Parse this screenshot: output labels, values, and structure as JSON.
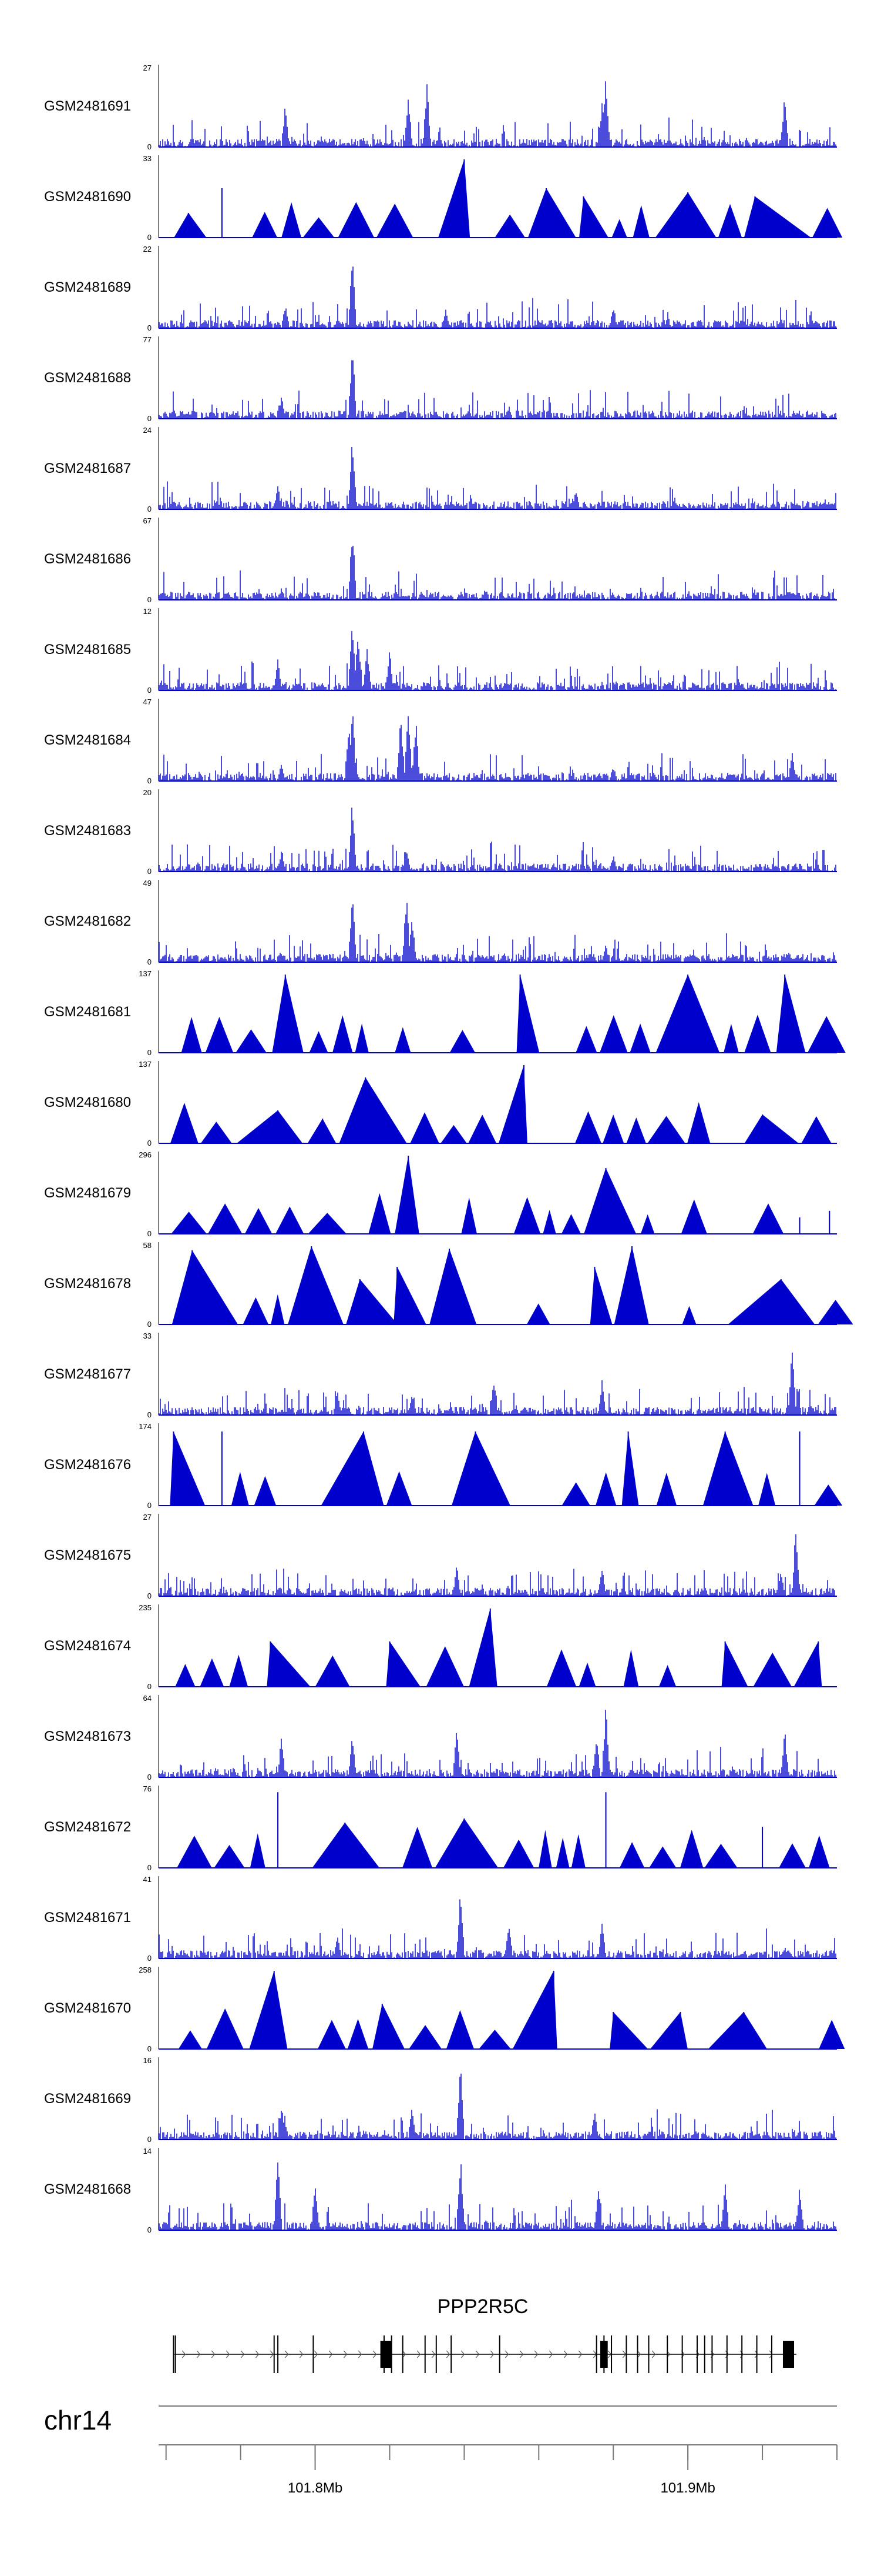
{
  "chart_data": {
    "type": "area",
    "title": "",
    "xlabel": "",
    "ylabel": "",
    "chromosome": "chr14",
    "gene_name": "PPP2R5C",
    "x_range_mb": [
      101.758,
      101.94
    ],
    "x_ticks_mb": [
      101.76,
      101.78,
      101.8,
      101.82,
      101.84,
      101.86,
      101.88,
      101.9,
      101.92,
      101.94
    ],
    "x_tick_labels": [
      {
        "position_mb": 101.8,
        "label": "101.8Mb"
      },
      {
        "position_mb": 101.9,
        "label": "101.9Mb"
      }
    ],
    "series_color": "#0000cc",
    "tracks": [
      {
        "name": "GSM2481691",
        "ymin": 0,
        "ymax": 27,
        "style": "dense",
        "peaks": [
          [
            101.792,
            0.55
          ],
          [
            101.825,
            0.7
          ],
          [
            101.83,
            0.8
          ],
          [
            101.878,
            0.92
          ],
          [
            101.877,
            0.6
          ],
          [
            101.926,
            0.72
          ]
        ]
      },
      {
        "name": "GSM2481690",
        "ymin": 0,
        "ymax": 33,
        "style": "sparse",
        "peaks": [
          [
            101.766,
            0.3
          ],
          [
            101.775,
            0.6
          ],
          [
            101.84,
            0.95
          ],
          [
            101.862,
            0.6
          ],
          [
            101.872,
            0.5
          ],
          [
            101.9,
            0.55
          ],
          [
            101.918,
            0.5
          ]
        ]
      },
      {
        "name": "GSM2481689",
        "ymin": 0,
        "ymax": 22,
        "style": "dense",
        "peaks": [
          [
            101.81,
            0.95
          ],
          [
            101.792,
            0.3
          ],
          [
            101.88,
            0.3
          ],
          [
            101.835,
            0.25
          ]
        ]
      },
      {
        "name": "GSM2481688",
        "ymin": 0,
        "ymax": 77,
        "style": "dense",
        "peaks": [
          [
            101.81,
            0.98
          ],
          [
            101.791,
            0.28
          ],
          [
            101.823,
            0.1
          ]
        ]
      },
      {
        "name": "GSM2481687",
        "ymin": 0,
        "ymax": 24,
        "style": "dense",
        "peaks": [
          [
            101.81,
            0.95
          ],
          [
            101.79,
            0.3
          ],
          [
            101.87,
            0.25
          ]
        ]
      },
      {
        "name": "GSM2481686",
        "ymin": 0,
        "ymax": 67,
        "style": "dense",
        "peaks": [
          [
            101.81,
            0.98
          ],
          [
            101.791,
            0.15
          ],
          [
            101.925,
            0.1
          ]
        ]
      },
      {
        "name": "GSM2481685",
        "ymin": 0,
        "ymax": 12,
        "style": "dense",
        "peaks": [
          [
            101.81,
            0.95
          ],
          [
            101.8115,
            0.7
          ],
          [
            101.814,
            0.55
          ],
          [
            101.82,
            0.5
          ],
          [
            101.79,
            0.4
          ]
        ]
      },
      {
        "name": "GSM2481684",
        "ymin": 0,
        "ymax": 47,
        "style": "dense",
        "peaks": [
          [
            101.809,
            0.75
          ],
          [
            101.81,
            0.95
          ],
          [
            101.823,
            0.85
          ],
          [
            101.825,
            0.98
          ],
          [
            101.827,
            0.8
          ],
          [
            101.791,
            0.25
          ],
          [
            101.88,
            0.2
          ],
          [
            101.928,
            0.35
          ]
        ]
      },
      {
        "name": "GSM2481683",
        "ymin": 0,
        "ymax": 20,
        "style": "dense",
        "peaks": [
          [
            101.81,
            0.95
          ],
          [
            101.791,
            0.3
          ],
          [
            101.8245,
            0.3
          ],
          [
            101.88,
            0.22
          ]
        ]
      },
      {
        "name": "GSM2481682",
        "ymin": 0,
        "ymax": 49,
        "style": "dense",
        "peaks": [
          [
            101.81,
            0.95
          ],
          [
            101.8245,
            0.9
          ],
          [
            101.826,
            0.6
          ],
          [
            101.791,
            0.12
          ],
          [
            101.878,
            0.22
          ],
          [
            101.927,
            0.15
          ]
        ]
      },
      {
        "name": "GSM2481681",
        "ymin": 0,
        "ymax": 137,
        "style": "sparse",
        "peaks": [
          [
            101.792,
            0.95
          ],
          [
            101.855,
            0.95
          ],
          [
            101.9,
            0.95
          ],
          [
            101.926,
            0.95
          ]
        ]
      },
      {
        "name": "GSM2481680",
        "ymin": 0,
        "ymax": 137,
        "style": "sparse",
        "peaks": [
          [
            101.8135,
            0.8
          ],
          [
            101.856,
            0.95
          ],
          [
            101.79,
            0.4
          ],
          [
            101.802,
            0.3
          ],
          [
            101.92,
            0.35
          ]
        ]
      },
      {
        "name": "GSM2481679",
        "ymin": 0,
        "ymax": 296,
        "style": "sparse",
        "peaks": [
          [
            101.825,
            0.95
          ],
          [
            101.878,
            0.8
          ],
          [
            101.938,
            0.28
          ],
          [
            101.93,
            0.2
          ]
        ]
      },
      {
        "name": "GSM2481678",
        "ymin": 0,
        "ymax": 58,
        "style": "sparse",
        "peaks": [
          [
            101.767,
            0.9
          ],
          [
            101.799,
            0.95
          ],
          [
            101.812,
            0.55
          ],
          [
            101.822,
            0.7
          ],
          [
            101.836,
            0.92
          ],
          [
            101.875,
            0.7
          ],
          [
            101.885,
            0.95
          ],
          [
            101.925,
            0.55
          ]
        ]
      },
      {
        "name": "GSM2481677",
        "ymin": 0,
        "ymax": 33,
        "style": "dense",
        "peaks": [
          [
            101.928,
            0.95
          ],
          [
            101.848,
            0.45
          ],
          [
            101.877,
            0.45
          ],
          [
            101.806,
            0.3
          ],
          [
            101.826,
            0.25
          ]
        ]
      },
      {
        "name": "GSM2481676",
        "ymin": 0,
        "ymax": 174,
        "style": "sparse",
        "peaks": [
          [
            101.762,
            0.9
          ],
          [
            101.775,
            0.9
          ],
          [
            101.813,
            0.9
          ],
          [
            101.843,
            0.9
          ],
          [
            101.884,
            0.9
          ],
          [
            101.91,
            0.9
          ],
          [
            101.93,
            0.9
          ]
        ]
      },
      {
        "name": "GSM2481675",
        "ymin": 0,
        "ymax": 27,
        "style": "dense",
        "peaks": [
          [
            101.929,
            0.92
          ],
          [
            101.838,
            0.4
          ],
          [
            101.877,
            0.4
          ],
          [
            101.925,
            0.35
          ]
        ]
      },
      {
        "name": "GSM2481674",
        "ymin": 0,
        "ymax": 235,
        "style": "sparse",
        "peaks": [
          [
            101.788,
            0.55
          ],
          [
            101.82,
            0.55
          ],
          [
            101.847,
            0.95
          ],
          [
            101.91,
            0.55
          ],
          [
            101.935,
            0.55
          ]
        ]
      },
      {
        "name": "GSM2481673",
        "ymin": 0,
        "ymax": 64,
        "style": "dense",
        "peaks": [
          [
            101.878,
            0.95
          ],
          [
            101.8755,
            0.55
          ],
          [
            101.791,
            0.55
          ],
          [
            101.81,
            0.55
          ],
          [
            101.838,
            0.6
          ],
          [
            101.926,
            0.6
          ]
        ]
      },
      {
        "name": "GSM2481672",
        "ymin": 0,
        "ymax": 76,
        "style": "sparse",
        "peaks": [
          [
            101.79,
            0.92
          ],
          [
            101.878,
            0.92
          ],
          [
            101.84,
            0.6
          ],
          [
            101.808,
            0.55
          ],
          [
            101.92,
            0.5
          ]
        ]
      },
      {
        "name": "GSM2481671",
        "ymin": 0,
        "ymax": 41,
        "style": "dense",
        "peaks": [
          [
            101.839,
            0.95
          ],
          [
            101.852,
            0.5
          ],
          [
            101.877,
            0.45
          ],
          [
            101.806,
            0.3
          ]
        ]
      },
      {
        "name": "GSM2481670",
        "ymin": 0,
        "ymax": 258,
        "style": "sparse",
        "peaks": [
          [
            101.789,
            0.95
          ],
          [
            101.818,
            0.55
          ],
          [
            101.864,
            0.95
          ],
          [
            101.88,
            0.45
          ],
          [
            101.898,
            0.45
          ],
          [
            101.915,
            0.45
          ]
        ]
      },
      {
        "name": "GSM2481669",
        "ymin": 0,
        "ymax": 16,
        "style": "dense",
        "peaks": [
          [
            101.839,
            0.95
          ],
          [
            101.791,
            0.45
          ],
          [
            101.826,
            0.45
          ],
          [
            101.875,
            0.35
          ]
        ]
      },
      {
        "name": "GSM2481668",
        "ymin": 0,
        "ymax": 14,
        "style": "dense",
        "peaks": [
          [
            101.79,
            0.9
          ],
          [
            101.839,
            0.95
          ],
          [
            101.8,
            0.6
          ],
          [
            101.876,
            0.6
          ],
          [
            101.91,
            0.6
          ],
          [
            101.93,
            0.55
          ]
        ]
      }
    ],
    "gene_model": {
      "strand": "+",
      "start_mb": 101.762,
      "end_mb": 101.929,
      "exons_mb": [
        101.762,
        101.7625,
        101.789,
        101.79,
        101.7995,
        101.8185,
        101.8205,
        101.8235,
        101.8295,
        101.8325,
        101.8365,
        101.8495,
        101.8755,
        101.8775,
        101.8795,
        101.8835,
        101.8865,
        101.8895,
        101.8945,
        101.8985,
        101.9025,
        101.9045,
        101.9065,
        101.9105,
        101.9145,
        101.9185,
        101.9225
      ],
      "thick_blocks_mb": [
        [
          101.8175,
          101.8205
        ],
        [
          101.8765,
          101.8785
        ],
        [
          101.9255,
          101.9285
        ]
      ]
    }
  }
}
